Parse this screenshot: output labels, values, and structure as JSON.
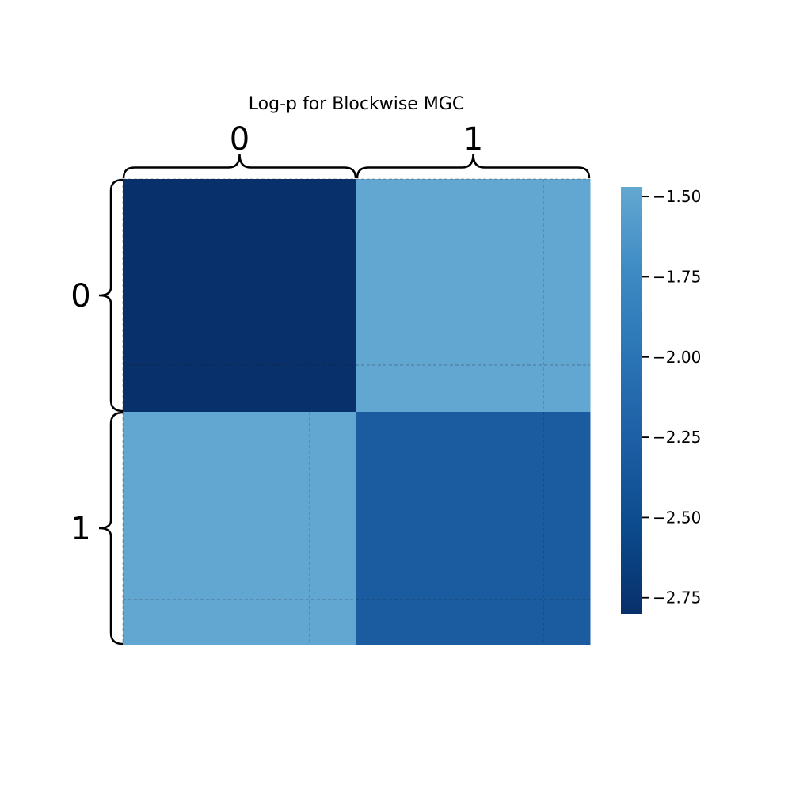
{
  "chart_data": {
    "type": "heatmap",
    "title": "Log-p for Blockwise MGC",
    "row_labels": [
      "0",
      "1"
    ],
    "col_labels": [
      "0",
      "1"
    ],
    "values": [
      [
        -2.8,
        -1.48
      ],
      [
        -1.48,
        -2.3
      ]
    ],
    "colorbar": {
      "range": [
        -2.8,
        -1.47
      ],
      "ticks": [
        -1.5,
        -1.75,
        -2.0,
        -2.25,
        -2.5,
        -2.75
      ],
      "tick_labels": [
        "−1.50",
        "−1.75",
        "−2.00",
        "−2.25",
        "−2.50",
        "−2.75"
      ],
      "colormap": "Blues",
      "placement": "right"
    },
    "grid": true
  }
}
